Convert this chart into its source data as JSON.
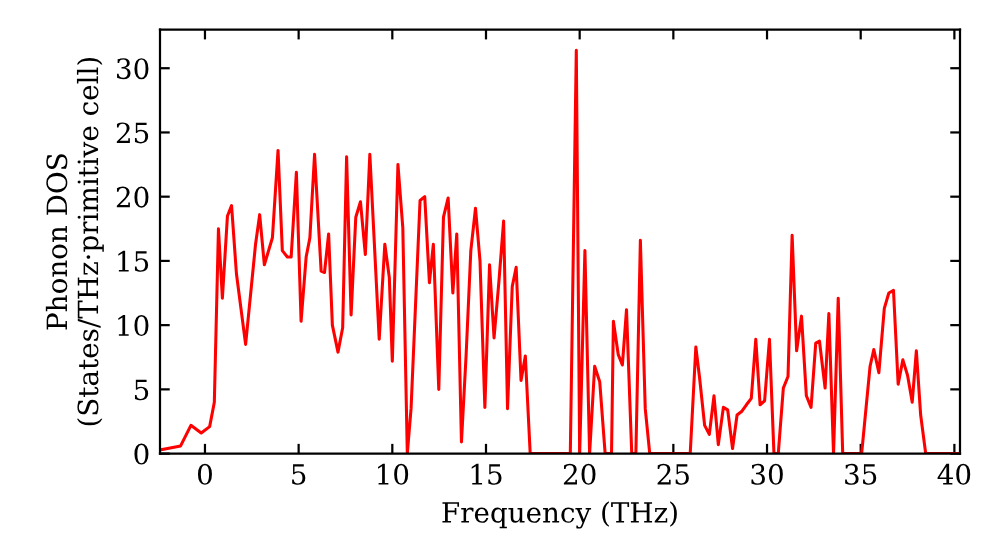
{
  "chart_data": {
    "type": "line",
    "xlabel": "Frequency (THz)",
    "ylabel": "Phonon DOS\n(States/THz·primitive cell)",
    "xlim": [
      -2.4,
      40.3
    ],
    "ylim": [
      0,
      33
    ],
    "xticks": [
      0,
      5,
      10,
      15,
      20,
      25,
      30,
      35,
      40
    ],
    "yticks": [
      0,
      5,
      10,
      15,
      20,
      25,
      30
    ],
    "grid": false,
    "marker": "none",
    "line_style": "solid",
    "series": [
      {
        "color": "#ff0000",
        "x": [
          -2.35,
          -1.3,
          -0.75,
          -0.2,
          0.25,
          0.5,
          0.72,
          0.93,
          1.2,
          1.42,
          1.68,
          2.17,
          2.7,
          2.92,
          3.17,
          3.6,
          3.9,
          4.13,
          4.4,
          4.6,
          4.88,
          5.13,
          5.4,
          5.6,
          5.85,
          6.2,
          6.38,
          6.6,
          6.8,
          7.1,
          7.35,
          7.56,
          7.8,
          8.05,
          8.3,
          8.56,
          8.8,
          9.3,
          9.6,
          9.84,
          10.0,
          10.3,
          10.56,
          10.8,
          11.0,
          11.48,
          11.73,
          11.98,
          12.19,
          12.48,
          12.73,
          12.98,
          13.23,
          13.44,
          13.69,
          13.94,
          14.19,
          14.44,
          14.68,
          14.94,
          15.19,
          15.43,
          15.69,
          15.94,
          16.15,
          16.4,
          16.61,
          16.87,
          17.1,
          17.36,
          19.5,
          19.82,
          20.0,
          20.28,
          20.53,
          20.8,
          21.07,
          21.36,
          21.7,
          21.8,
          22.06,
          22.28,
          22.5,
          22.78,
          23.0,
          23.24,
          23.5,
          23.74,
          25.9,
          26.2,
          26.4,
          26.67,
          26.92,
          27.17,
          27.4,
          27.67,
          27.9,
          28.16,
          28.4,
          28.66,
          28.9,
          29.16,
          29.4,
          29.63,
          29.87,
          30.13,
          30.37,
          30.6,
          30.87,
          31.12,
          31.34,
          31.58,
          31.84,
          32.1,
          32.35,
          32.6,
          32.8,
          33.1,
          33.3,
          33.55,
          33.8,
          34.04,
          35.05,
          35.5,
          35.7,
          35.97,
          36.26,
          36.5,
          36.75,
          37.0,
          37.25,
          37.5,
          37.75,
          37.97,
          38.2,
          38.47,
          40.3
        ],
        "values": [
          0.3,
          0.6,
          2.2,
          1.6,
          2.1,
          4,
          17.5,
          12.1,
          18.5,
          19.3,
          14,
          8.5,
          16.3,
          18.6,
          14.7,
          16.8,
          23.6,
          15.8,
          15.3,
          15.3,
          21.9,
          10.3,
          15.3,
          16.8,
          23.3,
          14.2,
          14.1,
          17.1,
          10,
          7.9,
          9.8,
          23.1,
          10.8,
          18.4,
          19.6,
          15.5,
          23.3,
          8.9,
          16.3,
          13.7,
          7.2,
          22.5,
          17.6,
          0,
          3.5,
          19.7,
          20,
          13.3,
          16.3,
          5,
          18.4,
          19.9,
          12.5,
          17.1,
          0.9,
          7.7,
          15.8,
          19.1,
          15,
          3.6,
          14.7,
          9,
          13.4,
          18.1,
          3.5,
          13,
          14.5,
          5.7,
          7.6,
          0,
          0,
          31.4,
          0,
          15.8,
          0,
          6.8,
          5.6,
          0,
          0,
          10.3,
          7.7,
          6.9,
          11.2,
          0,
          0,
          16.6,
          3.5,
          0,
          0,
          8.3,
          5.9,
          2.2,
          1.5,
          4.5,
          0.7,
          3.6,
          3.4,
          0.4,
          3,
          3.3,
          3.8,
          4.3,
          8.9,
          3.8,
          4.1,
          8.9,
          0,
          0,
          5.1,
          6,
          17,
          8,
          10.7,
          4.5,
          3.6,
          8.6,
          8.75,
          5.1,
          10.9,
          0,
          12.1,
          0,
          0,
          6.8,
          8.1,
          6.3,
          11.3,
          12.5,
          12.7,
          5.4,
          7.3,
          6.1,
          4,
          8,
          3,
          0,
          0
        ]
      }
    ]
  }
}
